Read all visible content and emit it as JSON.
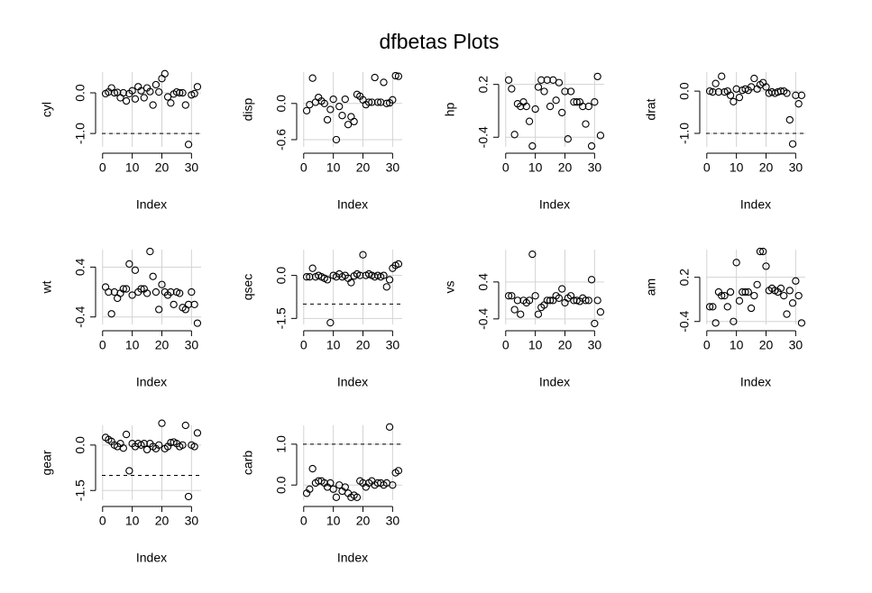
{
  "title": "dfbetas Plots",
  "chart_data": [
    {
      "type": "scatter",
      "ylabel": "cyl",
      "xlabel": "Index",
      "x": [
        1,
        2,
        3,
        4,
        5,
        6,
        7,
        8,
        9,
        10,
        11,
        12,
        13,
        14,
        15,
        16,
        17,
        18,
        19,
        20,
        21,
        22,
        23,
        24,
        25,
        26,
        27,
        28,
        29,
        30,
        31,
        32
      ],
      "values": [
        -0.02,
        0.02,
        0.12,
        0.0,
        0.01,
        -0.12,
        0.0,
        -0.2,
        -0.02,
        0.05,
        -0.15,
        0.15,
        0.05,
        -0.12,
        0.12,
        0.03,
        -0.3,
        0.2,
        0.02,
        0.35,
        0.47,
        -0.1,
        -0.25,
        -0.03,
        0.02,
        0.0,
        0.0,
        -0.3,
        -1.27,
        -0.05,
        -0.02,
        0.15
      ],
      "xlim": [
        -0.24,
        33.24
      ],
      "ylim": [
        -1.33,
        0.51
      ],
      "xticks": [
        0,
        10,
        20,
        30
      ],
      "yticks": [
        {
          "value": -1,
          "label": "-1.0"
        },
        {
          "value": 0,
          "label": "0.0"
        }
      ],
      "grid": true,
      "reference_lines": [
        -1
      ],
      "color": "#000000"
    },
    {
      "type": "scatter",
      "ylabel": "disp",
      "xlabel": "Index",
      "x": [
        1,
        2,
        3,
        4,
        5,
        6,
        7,
        8,
        9,
        10,
        11,
        12,
        13,
        14,
        15,
        16,
        17,
        18,
        19,
        20,
        21,
        22,
        23,
        24,
        25,
        26,
        27,
        28,
        29,
        30,
        31,
        32
      ],
      "values": [
        -0.12,
        -0.02,
        0.42,
        0.02,
        0.1,
        0.04,
        0.0,
        -0.27,
        -0.1,
        0.07,
        -0.6,
        -0.05,
        -0.2,
        0.07,
        -0.35,
        -0.22,
        -0.3,
        0.15,
        0.12,
        0.06,
        -0.02,
        0.02,
        0.02,
        0.43,
        0.02,
        0.02,
        0.35,
        0.0,
        0.01,
        0.06,
        0.46,
        0.45
      ],
      "xlim": [
        -0.24,
        33.24
      ],
      "ylim": [
        -0.72,
        0.52
      ],
      "xticks": [
        0,
        10,
        20,
        30
      ],
      "yticks": [
        -0.6,
        {
          "value": 0,
          "label": "0.0"
        }
      ],
      "grid": true,
      "color": "#000000"
    },
    {
      "type": "scatter",
      "ylabel": "hp",
      "xlabel": "Index",
      "x": [
        1,
        2,
        3,
        4,
        5,
        6,
        7,
        8,
        9,
        10,
        11,
        12,
        13,
        14,
        15,
        16,
        17,
        18,
        19,
        20,
        21,
        22,
        23,
        24,
        25,
        26,
        27,
        28,
        29,
        30,
        31,
        32
      ],
      "values": [
        0.25,
        0.15,
        -0.37,
        -0.02,
        -0.05,
        0.0,
        -0.05,
        -0.22,
        -0.5,
        -0.08,
        0.17,
        0.25,
        0.12,
        0.25,
        -0.05,
        0.25,
        0.02,
        0.22,
        -0.12,
        0.12,
        -0.42,
        0.12,
        0.0,
        0.0,
        0.0,
        -0.05,
        -0.25,
        -0.05,
        -0.5,
        0.0,
        0.29,
        -0.38
      ],
      "xlim": [
        -0.24,
        33.24
      ],
      "ylim": [
        -0.51,
        0.34
      ],
      "xticks": [
        0,
        10,
        20,
        30
      ],
      "yticks": [
        -0.4,
        0.2
      ],
      "grid": true,
      "color": "#000000"
    },
    {
      "type": "scatter",
      "ylabel": "drat",
      "xlabel": "Index",
      "x": [
        1,
        2,
        3,
        4,
        5,
        6,
        7,
        8,
        9,
        10,
        11,
        12,
        13,
        14,
        15,
        16,
        17,
        18,
        19,
        20,
        21,
        22,
        23,
        24,
        25,
        26,
        27,
        28,
        29,
        30,
        31,
        32
      ],
      "values": [
        0.0,
        -0.02,
        0.18,
        -0.02,
        0.35,
        -0.02,
        0.0,
        -0.1,
        -0.25,
        0.05,
        -0.15,
        0.02,
        0.05,
        0.02,
        0.1,
        0.3,
        0.05,
        0.15,
        0.2,
        0.1,
        -0.05,
        -0.02,
        -0.05,
        -0.02,
        0.0,
        0.0,
        -0.05,
        -0.68,
        -1.25,
        -0.1,
        -0.3,
        -0.1
      ],
      "xlim": [
        -0.24,
        33.24
      ],
      "ylim": [
        -1.32,
        0.45
      ],
      "xticks": [
        0,
        10,
        20,
        30
      ],
      "yticks": [
        {
          "value": -1,
          "label": "-1.0"
        },
        {
          "value": 0,
          "label": "0.0"
        }
      ],
      "grid": true,
      "reference_lines": [
        -1
      ],
      "color": "#000000"
    },
    {
      "type": "scatter",
      "ylabel": "wt",
      "xlabel": "Index",
      "x": [
        1,
        2,
        3,
        4,
        5,
        6,
        7,
        8,
        9,
        10,
        11,
        12,
        13,
        14,
        15,
        16,
        17,
        18,
        19,
        20,
        21,
        22,
        23,
        24,
        25,
        26,
        27,
        28,
        29,
        30,
        31,
        32
      ],
      "values": [
        0.08,
        0.0,
        -0.35,
        0.0,
        -0.1,
        -0.02,
        0.05,
        0.05,
        0.45,
        -0.05,
        0.35,
        0.0,
        0.05,
        0.05,
        -0.02,
        0.65,
        0.25,
        0.0,
        -0.28,
        0.12,
        0.0,
        -0.05,
        0.0,
        -0.2,
        0.0,
        -0.02,
        -0.25,
        -0.28,
        -0.2,
        0.0,
        -0.2,
        -0.5
      ],
      "xlim": [
        -0.24,
        33.24
      ],
      "ylim": [
        -0.52,
        0.68
      ],
      "xticks": [
        0,
        10,
        20,
        30
      ],
      "yticks": [
        -0.4,
        0.4
      ],
      "grid": true,
      "color": "#000000"
    },
    {
      "type": "scatter",
      "ylabel": "qsec",
      "xlabel": "Index",
      "x": [
        1,
        2,
        3,
        4,
        5,
        6,
        7,
        8,
        9,
        10,
        11,
        12,
        13,
        14,
        15,
        16,
        17,
        18,
        19,
        20,
        21,
        22,
        23,
        24,
        25,
        26,
        27,
        28,
        29,
        30,
        31,
        32
      ],
      "values": [
        -0.05,
        -0.05,
        0.25,
        -0.05,
        0.0,
        -0.05,
        -0.1,
        -0.15,
        -1.65,
        0.0,
        -0.05,
        0.05,
        -0.05,
        0.0,
        -0.1,
        -0.25,
        -0.02,
        0.05,
        0.0,
        0.72,
        0.0,
        0.05,
        0.0,
        -0.05,
        0.0,
        -0.05,
        0.0,
        -0.4,
        -0.15,
        0.25,
        0.35,
        0.4
      ],
      "xlim": [
        -0.24,
        33.24
      ],
      "ylim": [
        -1.71,
        0.9
      ],
      "xticks": [
        0,
        10,
        20,
        30
      ],
      "yticks": [
        -1.5,
        {
          "value": 0,
          "label": "0.0"
        }
      ],
      "grid": true,
      "reference_lines": [
        -1
      ],
      "color": "#000000"
    },
    {
      "type": "scatter",
      "ylabel": "vs",
      "xlabel": "Index",
      "x": [
        1,
        2,
        3,
        4,
        5,
        6,
        7,
        8,
        9,
        10,
        11,
        12,
        13,
        14,
        15,
        16,
        17,
        18,
        19,
        20,
        21,
        22,
        23,
        24,
        25,
        26,
        27,
        28,
        29,
        30,
        31,
        32
      ],
      "values": [
        0.1,
        0.1,
        -0.2,
        0.0,
        -0.3,
        0.0,
        -0.05,
        0.0,
        1.0,
        0.1,
        -0.3,
        -0.15,
        -0.1,
        0.0,
        0.0,
        0.0,
        0.1,
        0.05,
        0.25,
        -0.05,
        0.05,
        0.1,
        0.0,
        0.0,
        -0.02,
        0.05,
        0.0,
        0.0,
        0.45,
        -0.5,
        0.0,
        -0.25
      ],
      "xlim": [
        -0.24,
        33.24
      ],
      "ylim": [
        -0.52,
        1.1
      ],
      "xticks": [
        0,
        10,
        20,
        30
      ],
      "yticks": [
        -0.4,
        0.4
      ],
      "grid": true,
      "color": "#000000"
    },
    {
      "type": "scatter",
      "ylabel": "am",
      "xlabel": "Index",
      "x": [
        1,
        2,
        3,
        4,
        5,
        6,
        7,
        8,
        9,
        10,
        11,
        12,
        13,
        14,
        15,
        16,
        17,
        18,
        19,
        20,
        21,
        22,
        23,
        24,
        25,
        26,
        27,
        28,
        29,
        30,
        31,
        32
      ],
      "values": [
        -0.2,
        -0.2,
        -0.42,
        0.0,
        -0.05,
        -0.05,
        -0.2,
        0.0,
        -0.4,
        0.4,
        -0.12,
        0.0,
        0.0,
        0.0,
        -0.22,
        -0.05,
        0.1,
        0.55,
        0.55,
        0.35,
        0.02,
        0.05,
        0.02,
        0.0,
        0.05,
        -0.05,
        -0.3,
        0.02,
        -0.15,
        0.15,
        -0.05,
        -0.42
      ],
      "xlim": [
        -0.24,
        33.24
      ],
      "ylim": [
        -0.44,
        0.575
      ],
      "xticks": [
        0,
        10,
        20,
        30
      ],
      "yticks": [
        -0.4,
        0.2
      ],
      "grid": true,
      "color": "#000000"
    },
    {
      "type": "scatter",
      "ylabel": "gear",
      "xlabel": "Index",
      "x": [
        1,
        2,
        3,
        4,
        5,
        6,
        7,
        8,
        9,
        10,
        11,
        12,
        13,
        14,
        15,
        16,
        17,
        18,
        19,
        20,
        21,
        22,
        23,
        24,
        25,
        26,
        27,
        28,
        29,
        30,
        31,
        32
      ],
      "values": [
        0.25,
        0.18,
        0.12,
        0.0,
        -0.05,
        0.05,
        -0.1,
        0.35,
        -0.85,
        0.05,
        -0.05,
        0.05,
        0.0,
        0.05,
        -0.15,
        0.05,
        -0.05,
        -0.12,
        0.0,
        0.72,
        -0.12,
        -0.05,
        0.08,
        0.1,
        0.05,
        -0.05,
        0.0,
        0.65,
        -1.7,
        0.0,
        -0.05,
        0.4
      ],
      "xlim": [
        -0.24,
        33.24
      ],
      "ylim": [
        -1.82,
        0.65
      ],
      "xticks": [
        0,
        10,
        20,
        30
      ],
      "yticks": [
        -1.5,
        {
          "value": 0,
          "label": "0.0"
        }
      ],
      "grid": true,
      "reference_lines": [
        -1
      ],
      "color": "#000000"
    },
    {
      "type": "scatter",
      "ylabel": "carb",
      "xlabel": "Index",
      "x": [
        1,
        2,
        3,
        4,
        5,
        6,
        7,
        8,
        9,
        10,
        11,
        12,
        13,
        14,
        15,
        16,
        17,
        18,
        19,
        20,
        21,
        22,
        23,
        24,
        25,
        26,
        27,
        28,
        29,
        30,
        31,
        32
      ],
      "values": [
        -0.2,
        -0.1,
        0.4,
        0.05,
        0.1,
        0.1,
        0.05,
        -0.05,
        0.05,
        -0.1,
        -0.3,
        0.0,
        -0.15,
        -0.05,
        -0.2,
        -0.3,
        -0.25,
        -0.3,
        0.1,
        0.05,
        -0.05,
        0.05,
        0.1,
        0.0,
        0.05,
        0.05,
        0.0,
        0.05,
        1.42,
        0.0,
        0.3,
        0.35
      ],
      "xlim": [
        -0.24,
        33.24
      ],
      "ylim": [
        -0.37,
        1.46
      ],
      "xticks": [
        0,
        10,
        20,
        30
      ],
      "yticks": [
        {
          "value": 0,
          "label": "0.0"
        },
        {
          "value": 1,
          "label": "1.0"
        }
      ],
      "grid": true,
      "reference_lines": [
        1
      ],
      "color": "#000000"
    }
  ]
}
